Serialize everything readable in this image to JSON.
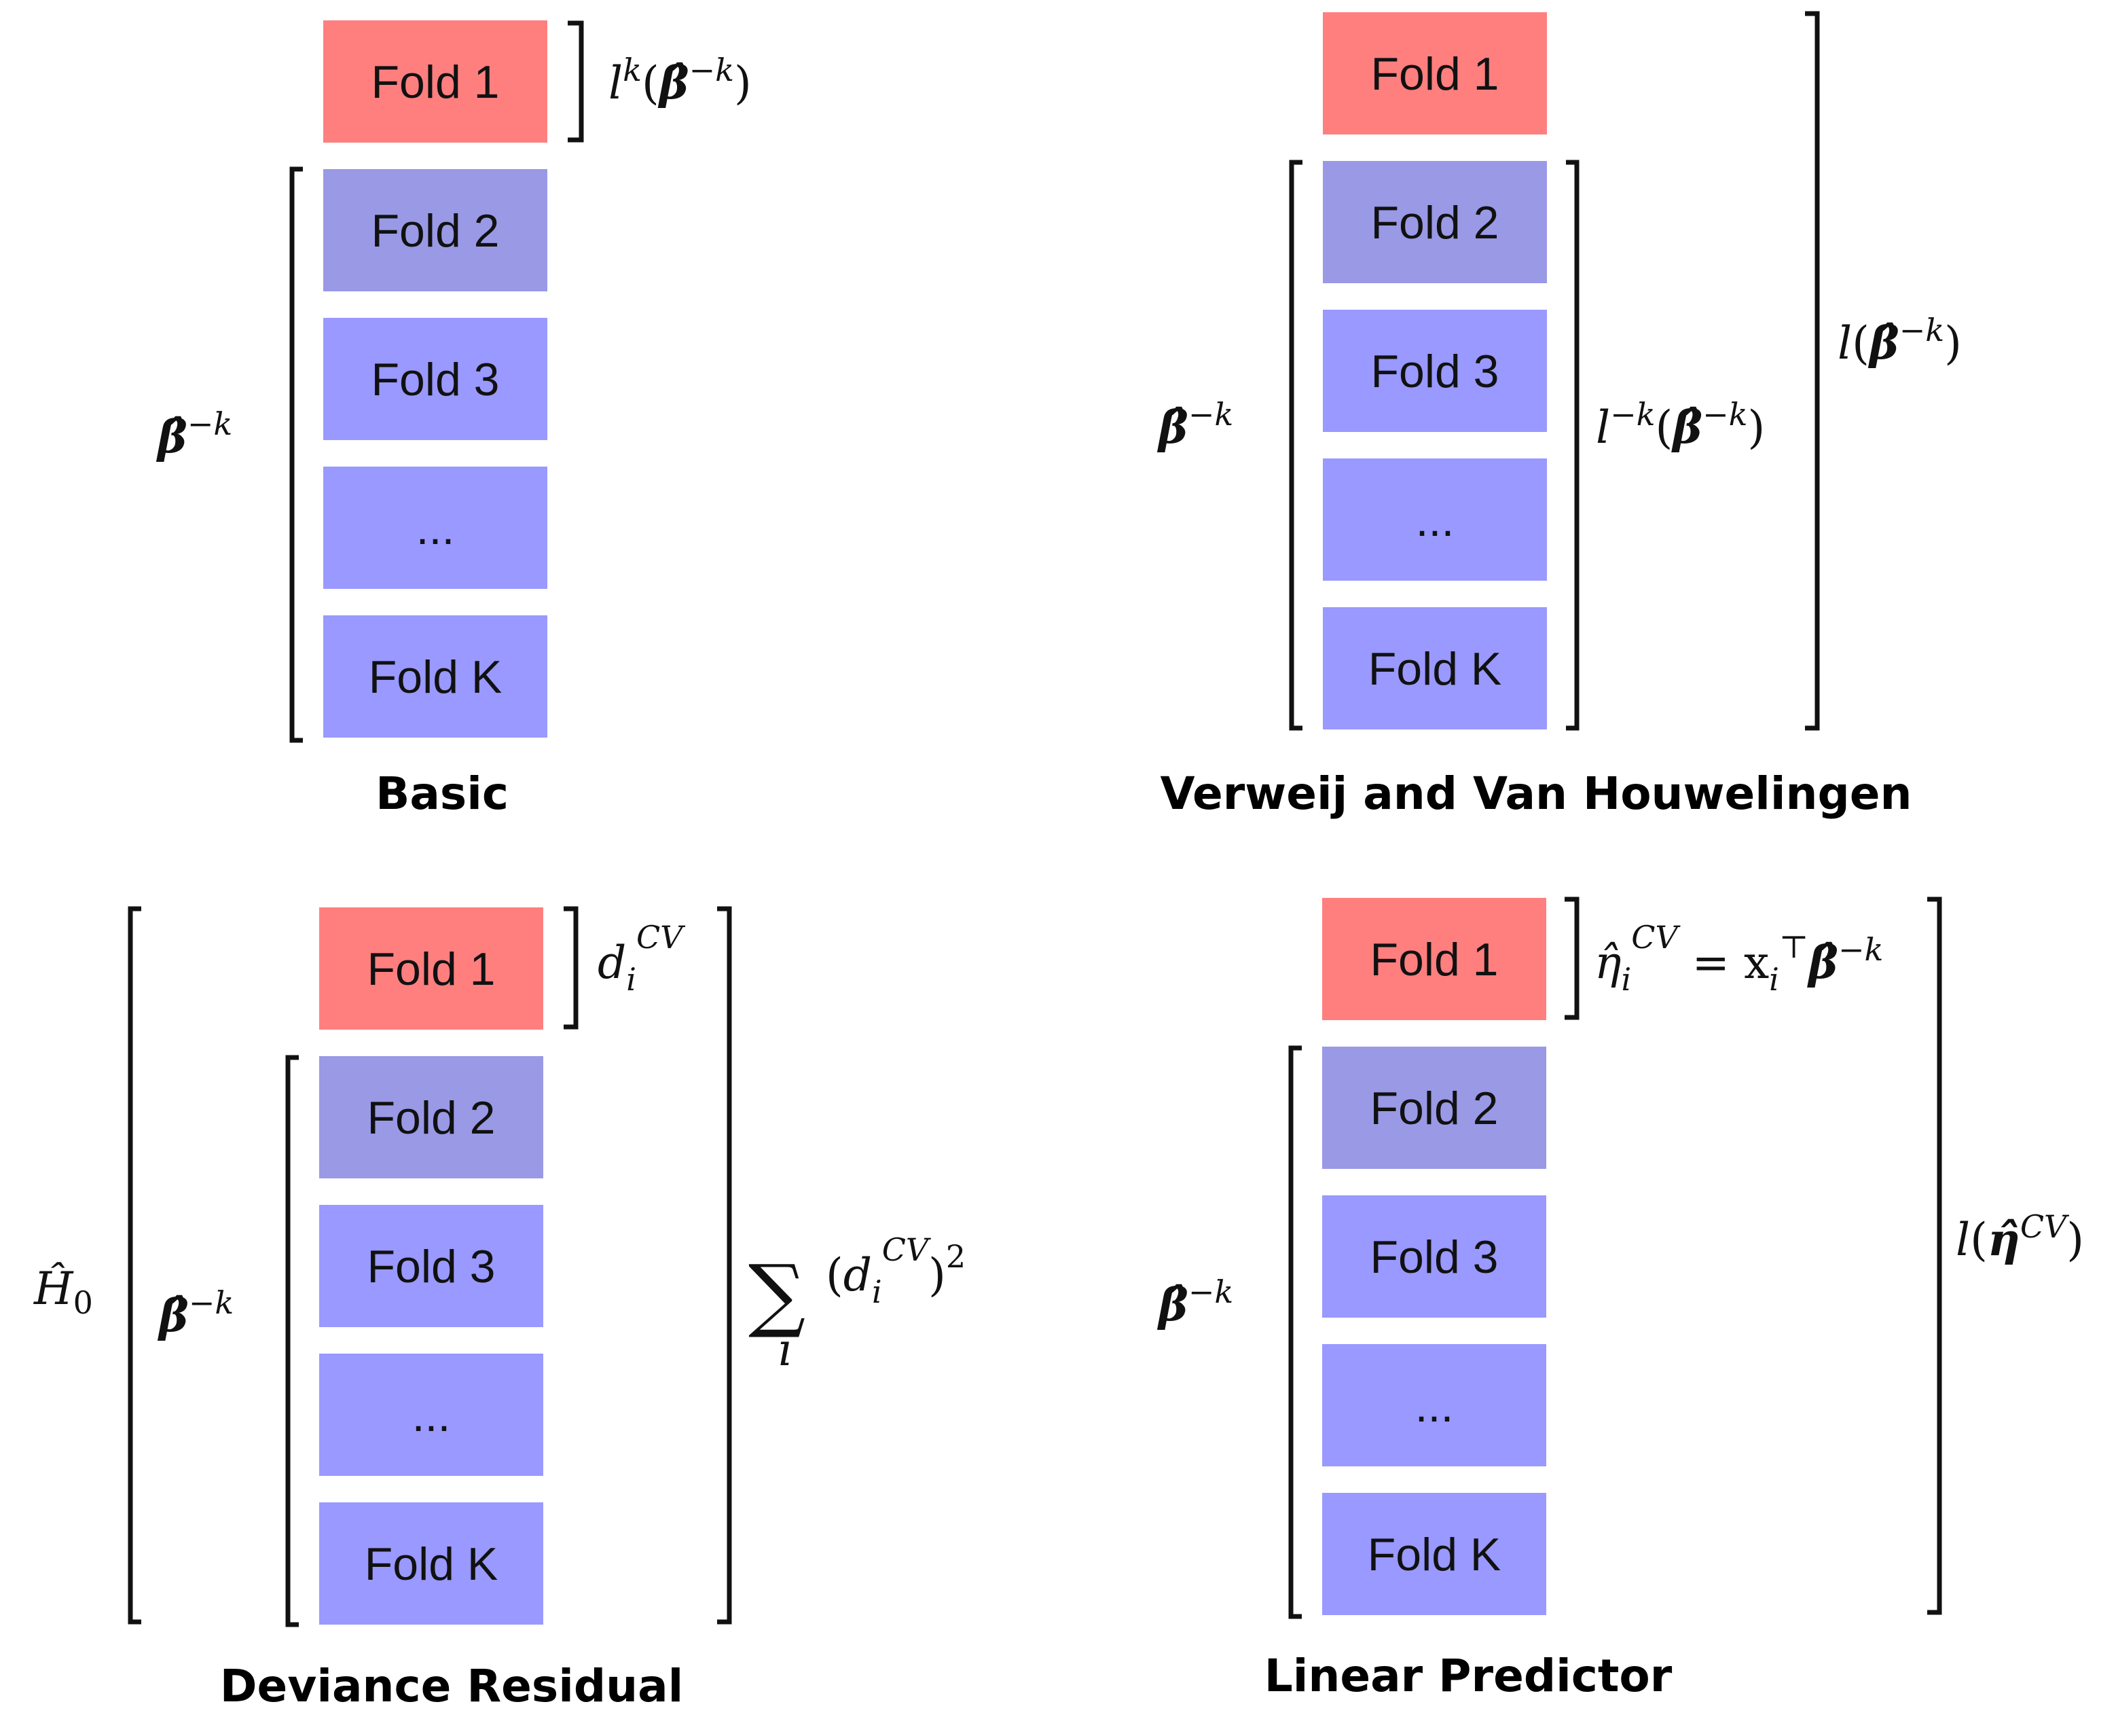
{
  "colors": {
    "fold_highlight": "#ff7f7f",
    "fold_dark": "#9999e6",
    "fold_light": "#9999ff",
    "text": "#111111"
  },
  "fold_labels": [
    "Fold 1",
    "Fold 2",
    "Fold 3",
    "...",
    "Fold K"
  ],
  "panels": [
    {
      "id": "basic",
      "caption": "Basic",
      "labels": {
        "fold1_loss": "l^k(β̂^{-k})",
        "beta_hat": "β̂^{-k}"
      }
    },
    {
      "id": "verweij",
      "caption": "Verweij and Van Houwelingen",
      "labels": {
        "full_loss": "l(β̂^{-k})",
        "partial_loss": "l^{-k}(β̂^{-k})",
        "beta_hat": "β̂^{-k}"
      }
    },
    {
      "id": "deviance",
      "caption": "Deviance Residual",
      "labels": {
        "residual": "d_i^{CV}",
        "sum": "Σ_i (d_i^{CV})^2",
        "baseline_hazard": "Ĥ_0",
        "beta_hat": "β̂^{-k}"
      }
    },
    {
      "id": "linear",
      "caption": "Linear Predictor",
      "labels": {
        "eta": "η̂_i^{CV} = x_i^⊤ β̂^{-k}",
        "full_loss": "l(η̂^{CV})",
        "beta_hat": "β̂^{-k}"
      }
    }
  ]
}
